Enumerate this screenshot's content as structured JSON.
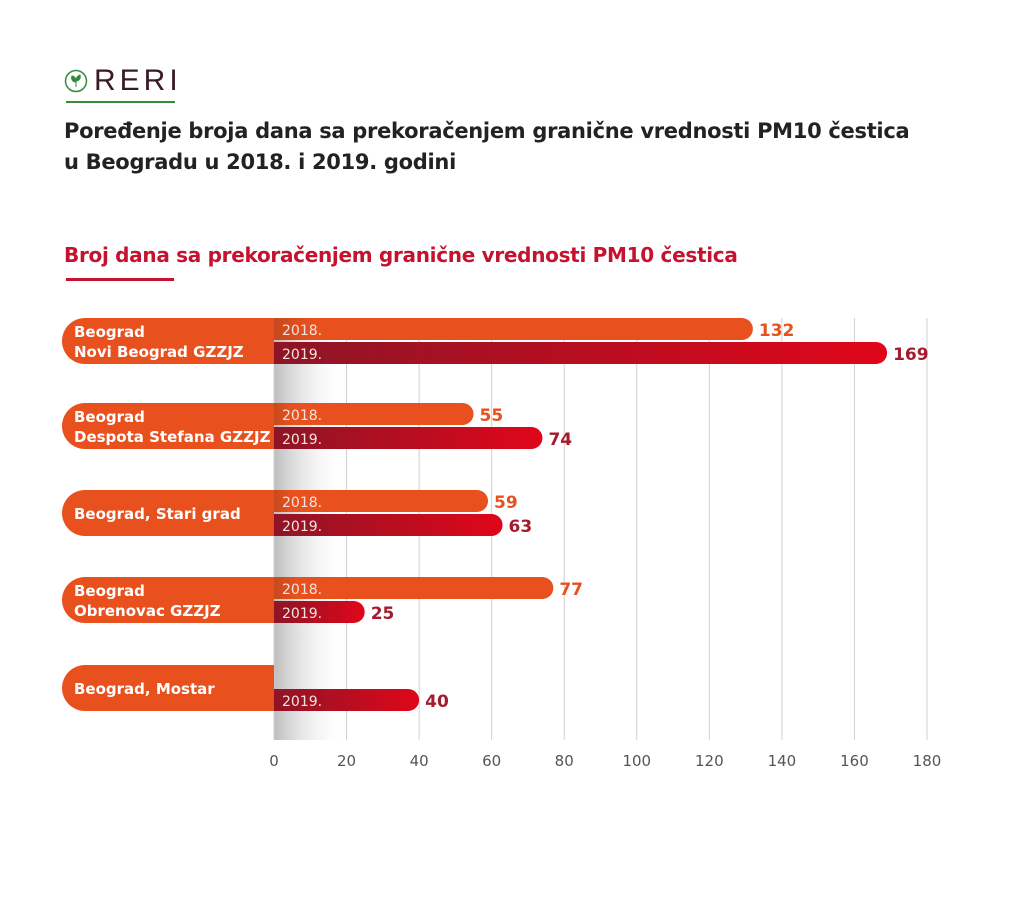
{
  "logo": {
    "text": "RERI"
  },
  "header": {
    "title_line1": "Poređenje broja dana sa prekoračenjem granične vrednosti PM10 čestica",
    "title_line2": "u Beogradu u 2018. i 2019. godini"
  },
  "chart_data": {
    "type": "bar",
    "orientation": "horizontal",
    "title": "Broj dana sa prekoračenjem granične vrednosti PM10 čestica",
    "categories": [
      [
        "Beograd",
        "Novi Beograd GZZJZ"
      ],
      [
        "Beograd",
        "Despota Stefana GZZJZ"
      ],
      [
        "Beograd, Stari grad"
      ],
      [
        "Beograd",
        "Obrenovac GZZJZ"
      ],
      [
        "Beograd, Mostar"
      ]
    ],
    "series": [
      {
        "name": "2018.",
        "values": [
          132,
          55,
          59,
          77,
          null
        ],
        "color": "#e8501e"
      },
      {
        "name": "2019.",
        "values": [
          169,
          74,
          63,
          25,
          40
        ],
        "color": "#e0061a",
        "label_color": "#a51b2d"
      }
    ],
    "xlim": [
      0,
      180
    ],
    "xticks": [
      0,
      20,
      40,
      60,
      80,
      100,
      120,
      140,
      160,
      180
    ],
    "grid": true,
    "label_color": "#e8501e"
  }
}
